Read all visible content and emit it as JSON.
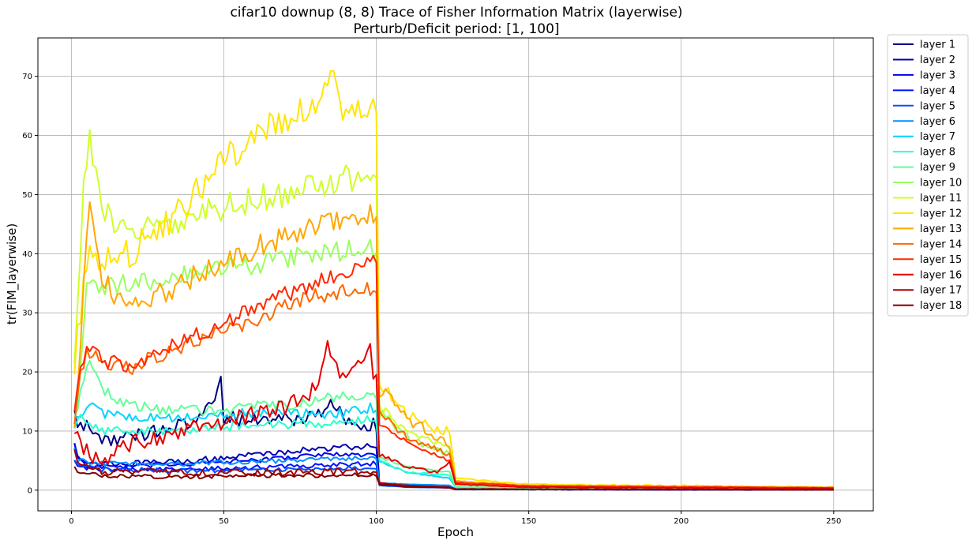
{
  "chart_data": {
    "type": "line",
    "title_lines": [
      "cifar10 downup (8, 8) Trace of Fisher Information Matrix (layerwise)",
      "Perturb/Deficit period: [1, 100]"
    ],
    "xlabel": "Epoch",
    "ylabel": "tr(FIM_layerwise)",
    "xlim": [
      -11,
      263
    ],
    "ylim": [
      -3.5,
      76.5
    ],
    "xticks": [
      0,
      50,
      100,
      150,
      200,
      250
    ],
    "yticks": [
      0,
      10,
      20,
      30,
      40,
      50,
      60,
      70
    ],
    "grid": true,
    "legend_placement": "outside-upper-right",
    "x_start": 1,
    "x_end": 250,
    "series": [
      {
        "name": "layer 1",
        "color": "#00007f",
        "profile": [
          [
            1,
            14
          ],
          [
            2,
            10
          ],
          [
            5,
            11
          ],
          [
            10,
            8.5
          ],
          [
            20,
            9
          ],
          [
            30,
            10.5
          ],
          [
            40,
            11
          ],
          [
            49,
            18
          ],
          [
            50,
            12
          ],
          [
            60,
            12
          ],
          [
            70,
            12
          ],
          [
            80,
            12.5
          ],
          [
            85,
            15
          ],
          [
            90,
            12
          ],
          [
            99,
            11
          ],
          [
            100,
            11
          ],
          [
            101,
            1.2
          ],
          [
            110,
            0.9
          ],
          [
            124,
            0.6
          ],
          [
            126,
            0.15
          ],
          [
            150,
            0.1
          ],
          [
            250,
            0.05
          ]
        ],
        "noise": 1.3
      },
      {
        "name": "layer 2",
        "color": "#0000b2",
        "profile": [
          [
            1,
            8
          ],
          [
            2,
            6
          ],
          [
            5,
            4.5
          ],
          [
            20,
            4.5
          ],
          [
            40,
            5
          ],
          [
            60,
            6
          ],
          [
            80,
            7
          ],
          [
            99,
            7.5
          ],
          [
            100,
            7.5
          ],
          [
            101,
            1.0
          ],
          [
            110,
            0.8
          ],
          [
            124,
            0.5
          ],
          [
            126,
            0.15
          ],
          [
            250,
            0.05
          ]
        ],
        "noise": 0.5
      },
      {
        "name": "layer 3",
        "color": "#0000f1",
        "profile": [
          [
            1,
            8
          ],
          [
            2,
            6
          ],
          [
            5,
            4
          ],
          [
            20,
            4
          ],
          [
            40,
            4.5
          ],
          [
            60,
            5
          ],
          [
            80,
            6
          ],
          [
            99,
            6
          ],
          [
            100,
            6
          ],
          [
            101,
            1.0
          ],
          [
            110,
            0.8
          ],
          [
            124,
            0.5
          ],
          [
            126,
            0.15
          ],
          [
            250,
            0.05
          ]
        ],
        "noise": 0.4
      },
      {
        "name": "layer 4",
        "color": "#0010ff",
        "profile": [
          [
            1,
            5
          ],
          [
            2,
            4
          ],
          [
            10,
            3.5
          ],
          [
            40,
            3.5
          ],
          [
            70,
            4
          ],
          [
            99,
            4.5
          ],
          [
            100,
            4.5
          ],
          [
            101,
            0.9
          ],
          [
            110,
            0.6
          ],
          [
            124,
            0.4
          ],
          [
            126,
            0.12
          ],
          [
            250,
            0.05
          ]
        ],
        "noise": 0.4
      },
      {
        "name": "layer 5",
        "color": "#0050ff",
        "profile": [
          [
            1,
            5
          ],
          [
            2,
            4
          ],
          [
            10,
            3.5
          ],
          [
            40,
            3.3
          ],
          [
            70,
            3.5
          ],
          [
            99,
            3.8
          ],
          [
            100,
            3.8
          ],
          [
            101,
            0.8
          ],
          [
            110,
            0.5
          ],
          [
            124,
            0.4
          ],
          [
            126,
            0.12
          ],
          [
            250,
            0.05
          ]
        ],
        "noise": 0.4
      },
      {
        "name": "layer 6",
        "color": "#0090ff",
        "profile": [
          [
            1,
            7
          ],
          [
            2,
            5
          ],
          [
            10,
            4.5
          ],
          [
            40,
            4.5
          ],
          [
            70,
            5
          ],
          [
            99,
            5.5
          ],
          [
            100,
            5.5
          ],
          [
            101,
            1.2
          ],
          [
            110,
            1.0
          ],
          [
            124,
            0.8
          ],
          [
            126,
            0.2
          ],
          [
            250,
            0.06
          ]
        ],
        "noise": 0.4
      },
      {
        "name": "layer 7",
        "color": "#00d4ff",
        "profile": [
          [
            1,
            12
          ],
          [
            3,
            13
          ],
          [
            6,
            15
          ],
          [
            10,
            13
          ],
          [
            30,
            12
          ],
          [
            60,
            13
          ],
          [
            90,
            13
          ],
          [
            99,
            14
          ],
          [
            100,
            14
          ],
          [
            101,
            5
          ],
          [
            110,
            3
          ],
          [
            124,
            2
          ],
          [
            126,
            0.5
          ],
          [
            150,
            0.3
          ],
          [
            250,
            0.2
          ]
        ],
        "noise": 0.9
      },
      {
        "name": "layer 8",
        "color": "#29ffce",
        "profile": [
          [
            1,
            10
          ],
          [
            3,
            13
          ],
          [
            5,
            12
          ],
          [
            10,
            10
          ],
          [
            30,
            10
          ],
          [
            60,
            11
          ],
          [
            90,
            11.5
          ],
          [
            99,
            12
          ],
          [
            100,
            12
          ],
          [
            101,
            5
          ],
          [
            110,
            3
          ],
          [
            124,
            2.5
          ],
          [
            126,
            0.5
          ],
          [
            150,
            0.3
          ],
          [
            250,
            0.2
          ]
        ],
        "noise": 0.8
      },
      {
        "name": "layer 9",
        "color": "#60ff97",
        "profile": [
          [
            1,
            12
          ],
          [
            3,
            17
          ],
          [
            6,
            22
          ],
          [
            10,
            17
          ],
          [
            20,
            14
          ],
          [
            40,
            13.5
          ],
          [
            60,
            14
          ],
          [
            80,
            15
          ],
          [
            90,
            16
          ],
          [
            99,
            16
          ],
          [
            100,
            16
          ],
          [
            101,
            5.5
          ],
          [
            110,
            4
          ],
          [
            124,
            3
          ],
          [
            126,
            0.6
          ],
          [
            150,
            0.35
          ],
          [
            250,
            0.2
          ]
        ],
        "noise": 1.0
      },
      {
        "name": "layer 10",
        "color": "#9aff5d",
        "profile": [
          [
            1,
            12
          ],
          [
            3,
            20
          ],
          [
            5,
            35
          ],
          [
            10,
            34
          ],
          [
            20,
            35
          ],
          [
            40,
            37
          ],
          [
            60,
            38
          ],
          [
            80,
            40
          ],
          [
            99,
            41
          ],
          [
            100,
            41
          ],
          [
            101,
            13
          ],
          [
            110,
            9
          ],
          [
            124,
            6
          ],
          [
            126,
            1.0
          ],
          [
            150,
            0.5
          ],
          [
            250,
            0.3
          ]
        ],
        "noise": 1.8
      },
      {
        "name": "layer 11",
        "color": "#ceff29",
        "profile": [
          [
            1,
            24
          ],
          [
            3,
            38
          ],
          [
            4,
            52
          ],
          [
            6,
            60
          ],
          [
            10,
            47
          ],
          [
            20,
            43
          ],
          [
            40,
            47
          ],
          [
            60,
            49
          ],
          [
            80,
            51
          ],
          [
            99,
            54
          ],
          [
            100,
            54
          ],
          [
            101,
            14
          ],
          [
            110,
            10
          ],
          [
            124,
            7
          ],
          [
            126,
            1.2
          ],
          [
            150,
            0.6
          ],
          [
            250,
            0.35
          ]
        ],
        "noise": 2.5
      },
      {
        "name": "layer 12",
        "color": "#ffe600",
        "profile": [
          [
            1,
            22
          ],
          [
            3,
            30
          ],
          [
            5,
            40
          ],
          [
            10,
            38
          ],
          [
            20,
            40
          ],
          [
            40,
            50
          ],
          [
            50,
            56
          ],
          [
            60,
            60
          ],
          [
            70,
            62
          ],
          [
            80,
            65
          ],
          [
            85,
            72
          ],
          [
            90,
            63
          ],
          [
            99,
            65
          ],
          [
            100,
            65
          ],
          [
            101,
            18
          ],
          [
            110,
            13
          ],
          [
            120,
            10
          ],
          [
            124,
            10
          ],
          [
            126,
            2
          ],
          [
            150,
            1
          ],
          [
            250,
            0.5
          ]
        ],
        "noise": 2.8
      },
      {
        "name": "layer 13",
        "color": "#ffa700",
        "profile": [
          [
            1,
            12
          ],
          [
            3,
            25
          ],
          [
            5,
            42
          ],
          [
            6,
            47
          ],
          [
            10,
            35
          ],
          [
            20,
            31
          ],
          [
            40,
            36
          ],
          [
            60,
            41
          ],
          [
            80,
            45
          ],
          [
            99,
            47
          ],
          [
            100,
            47
          ],
          [
            101,
            17
          ],
          [
            110,
            12
          ],
          [
            124,
            8
          ],
          [
            126,
            1.5
          ],
          [
            150,
            0.8
          ],
          [
            250,
            0.4
          ]
        ],
        "noise": 2.0
      },
      {
        "name": "layer 14",
        "color": "#ff6800",
        "profile": [
          [
            1,
            12
          ],
          [
            3,
            20
          ],
          [
            5,
            24
          ],
          [
            10,
            22
          ],
          [
            20,
            21
          ],
          [
            40,
            25
          ],
          [
            60,
            29
          ],
          [
            80,
            33
          ],
          [
            99,
            34
          ],
          [
            100,
            34
          ],
          [
            101,
            13
          ],
          [
            110,
            9
          ],
          [
            124,
            6
          ],
          [
            126,
            1.3
          ],
          [
            150,
            0.7
          ],
          [
            250,
            0.4
          ]
        ],
        "noise": 1.4
      },
      {
        "name": "layer 15",
        "color": "#ff2900",
        "profile": [
          [
            1,
            14
          ],
          [
            3,
            20
          ],
          [
            5,
            25
          ],
          [
            10,
            22
          ],
          [
            20,
            21
          ],
          [
            40,
            26
          ],
          [
            60,
            31
          ],
          [
            80,
            35
          ],
          [
            99,
            39
          ],
          [
            100,
            39
          ],
          [
            101,
            11
          ],
          [
            110,
            8
          ],
          [
            124,
            5
          ],
          [
            126,
            1.3
          ],
          [
            150,
            0.7
          ],
          [
            250,
            0.4
          ]
        ],
        "noise": 1.4
      },
      {
        "name": "layer 16",
        "color": "#e50000",
        "profile": [
          [
            1,
            10
          ],
          [
            3,
            7
          ],
          [
            10,
            5
          ],
          [
            20,
            8
          ],
          [
            30,
            9
          ],
          [
            40,
            11
          ],
          [
            50,
            11.5
          ],
          [
            60,
            13
          ],
          [
            70,
            14
          ],
          [
            80,
            17
          ],
          [
            84,
            24
          ],
          [
            90,
            18
          ],
          [
            98,
            24
          ],
          [
            99,
            20
          ],
          [
            100,
            20
          ],
          [
            101,
            6
          ],
          [
            110,
            4
          ],
          [
            120,
            3
          ],
          [
            124,
            5
          ],
          [
            126,
            1.0
          ],
          [
            150,
            0.5
          ],
          [
            250,
            0.3
          ]
        ],
        "noise": 1.4
      },
      {
        "name": "layer 17",
        "color": "#a70000",
        "profile": [
          [
            1,
            7
          ],
          [
            2,
            5
          ],
          [
            5,
            4
          ],
          [
            10,
            3
          ],
          [
            40,
            3
          ],
          [
            70,
            3
          ],
          [
            99,
            3.2
          ],
          [
            100,
            3.2
          ],
          [
            101,
            1.2
          ],
          [
            110,
            0.8
          ],
          [
            124,
            0.5
          ],
          [
            126,
            0.2
          ],
          [
            250,
            0.08
          ]
        ],
        "noise": 0.6
      },
      {
        "name": "layer 18",
        "color": "#7f0000",
        "profile": [
          [
            1,
            4
          ],
          [
            2,
            3
          ],
          [
            10,
            2.5
          ],
          [
            40,
            2.3
          ],
          [
            70,
            2.5
          ],
          [
            99,
            2.5
          ],
          [
            100,
            2.5
          ],
          [
            101,
            1.0
          ],
          [
            110,
            0.6
          ],
          [
            124,
            0.4
          ],
          [
            126,
            0.15
          ],
          [
            250,
            0.05
          ]
        ],
        "noise": 0.4
      }
    ]
  }
}
